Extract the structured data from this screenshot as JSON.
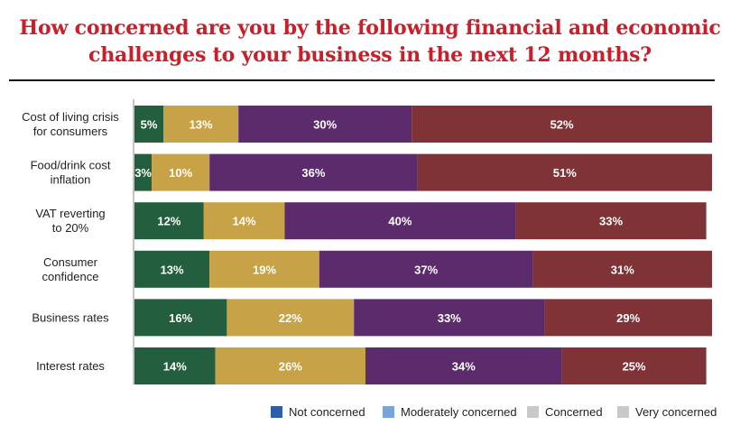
{
  "chart_data": {
    "type": "bar",
    "orientation": "horizontal",
    "stacked": true,
    "title": "How concerned are you by the following financial and economic challenges to your business in the next 12 months?",
    "categories": [
      "Cost of living crisis for consumers",
      "Food/drink cost inflation",
      "VAT reverting to 20%",
      "Consumer confidence",
      "Business rates",
      "Interest rates"
    ],
    "series": [
      {
        "values": [
          5,
          3,
          12,
          13,
          16,
          14
        ],
        "color": "#235e3f"
      },
      {
        "values": [
          13,
          10,
          14,
          19,
          22,
          26
        ],
        "color": "#c8a246"
      },
      {
        "values": [
          30,
          36,
          40,
          37,
          33,
          34
        ],
        "color": "#5b2b6b"
      },
      {
        "values": [
          52,
          51,
          33,
          31,
          29,
          25
        ],
        "color": "#7f3336"
      }
    ],
    "value_suffix": "%",
    "xlim": [
      0,
      100
    ],
    "grid": false,
    "legend_position": "bottom-right",
    "legend": [
      {
        "label": "Not concerned",
        "color": "#2f5ea8"
      },
      {
        "label": "Moderately concerned",
        "color": "#78a6d8"
      },
      {
        "label": "Concerned",
        "color": "#c9c9c9"
      },
      {
        "label": "Very concerned",
        "color": "#c9c9c9"
      }
    ]
  }
}
